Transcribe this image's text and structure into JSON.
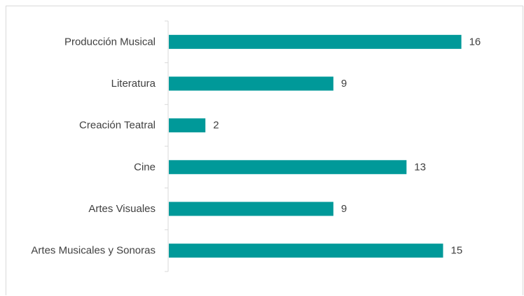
{
  "chart_data": {
    "type": "bar",
    "orientation": "horizontal",
    "categories": [
      "Producción Musical",
      "Literatura",
      "Creación Teatral",
      "Cine",
      "Artes Visuales",
      "Artes Musicales y Sonoras"
    ],
    "values": [
      16,
      9,
      2,
      13,
      9,
      15
    ],
    "data_labels": [
      "16",
      "9",
      "2",
      "13",
      "9",
      "15"
    ],
    "bar_color": "#009999",
    "axis_color": "#d9d9d9",
    "title": "",
    "xlabel": "",
    "ylabel": "",
    "xlim": [
      0,
      16
    ],
    "grid": false,
    "legend": "none"
  }
}
